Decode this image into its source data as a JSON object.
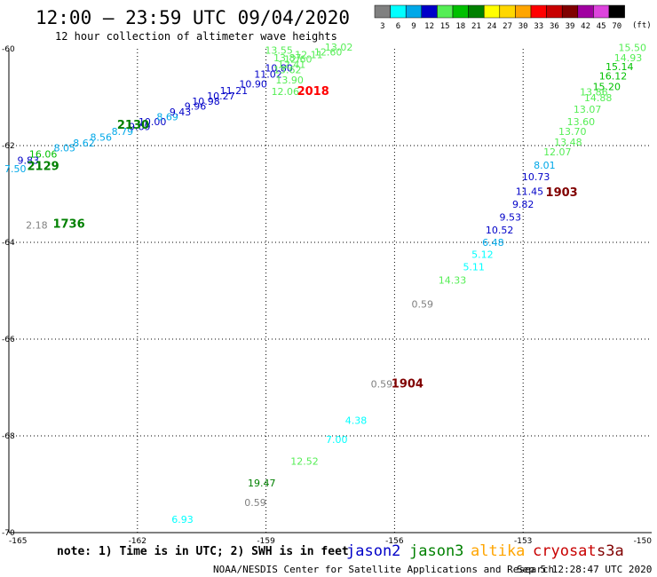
{
  "header": {
    "title": "12:00 – 23:59 UTC 09/04/2020",
    "subtitle": "12 hour collection of altimeter wave heights"
  },
  "legend": {
    "unit": "(ft)",
    "bins": [
      {
        "label": "3",
        "color": "#808080"
      },
      {
        "label": "6",
        "color": "#00ffff"
      },
      {
        "label": "9",
        "color": "#00a8e8"
      },
      {
        "label": "12",
        "color": "#0000c8"
      },
      {
        "label": "15",
        "color": "#55ee55"
      },
      {
        "label": "18",
        "color": "#00c000"
      },
      {
        "label": "21",
        "color": "#008000"
      },
      {
        "label": "24",
        "color": "#ffff00"
      },
      {
        "label": "27",
        "color": "#ffd700"
      },
      {
        "label": "30",
        "color": "#ffa500"
      },
      {
        "label": "33",
        "color": "#ff0000"
      },
      {
        "label": "36",
        "color": "#c80000"
      },
      {
        "label": "39",
        "color": "#800000"
      },
      {
        "label": "42",
        "color": "#a000a0"
      },
      {
        "label": "45",
        "color": "#dd44dd"
      },
      {
        "label": "70",
        "color": "#000000"
      }
    ]
  },
  "map": {
    "lon_range": [
      -165,
      -150
    ],
    "lat_range": [
      -70,
      -60
    ],
    "x_ticks": [
      "-165",
      "-162",
      "-159",
      "-156",
      "-153",
      "-150"
    ],
    "y_ticks": [
      "-60",
      "-62",
      "-64",
      "-66",
      "-68",
      "-70"
    ],
    "grid": "dotted",
    "time_labels": [
      {
        "text": "2018",
        "color": "#ff0000",
        "lon": -157.9,
        "lat": -60.95
      },
      {
        "text": "2130",
        "color": "#008000",
        "lon": -162.1,
        "lat": -61.65
      },
      {
        "text": "2129",
        "color": "#008000",
        "lon": -164.2,
        "lat": -62.5
      },
      {
        "text": "1736",
        "color": "#008000",
        "lon": -163.6,
        "lat": -63.7
      },
      {
        "text": "1903",
        "color": "#800000",
        "lon": -152.1,
        "lat": -63.05
      },
      {
        "text": "1904",
        "color": "#800000",
        "lon": -155.7,
        "lat": -67.0
      }
    ],
    "observations": [
      {
        "v": "7.50",
        "c": "#00a8e8",
        "lon": -164.85,
        "lat": -62.55
      },
      {
        "v": "9.83",
        "c": "#0000c8",
        "lon": -164.55,
        "lat": -62.38
      },
      {
        "v": "16.06",
        "c": "#00c000",
        "lon": -164.2,
        "lat": -62.25
      },
      {
        "v": "8.05",
        "c": "#00a8e8",
        "lon": -163.7,
        "lat": -62.12
      },
      {
        "v": "8.62",
        "c": "#00a8e8",
        "lon": -163.25,
        "lat": -62.02
      },
      {
        "v": "8.56",
        "c": "#00a8e8",
        "lon": -162.85,
        "lat": -61.9
      },
      {
        "v": "8.79",
        "c": "#00a8e8",
        "lon": -162.35,
        "lat": -61.78
      },
      {
        "v": "9.69",
        "c": "#0000c8",
        "lon": -161.95,
        "lat": -61.68
      },
      {
        "v": "10.00",
        "c": "#0000c8",
        "lon": -161.65,
        "lat": -61.58
      },
      {
        "v": "8.69",
        "c": "#00a8e8",
        "lon": -161.3,
        "lat": -61.48
      },
      {
        "v": "9.43",
        "c": "#0000c8",
        "lon": -161.0,
        "lat": -61.38
      },
      {
        "v": "9.96",
        "c": "#0000c8",
        "lon": -160.65,
        "lat": -61.26
      },
      {
        "v": "10.98",
        "c": "#0000c8",
        "lon": -160.4,
        "lat": -61.16
      },
      {
        "v": "10.27",
        "c": "#0000c8",
        "lon": -160.05,
        "lat": -61.05
      },
      {
        "v": "11.21",
        "c": "#0000c8",
        "lon": -159.75,
        "lat": -60.94
      },
      {
        "v": "10.90",
        "c": "#0000c8",
        "lon": -159.3,
        "lat": -60.8
      },
      {
        "v": "11.02",
        "c": "#0000c8",
        "lon": -158.95,
        "lat": -60.6
      },
      {
        "v": "10.80",
        "c": "#0000c8",
        "lon": -158.7,
        "lat": -60.47
      },
      {
        "v": "13.55",
        "c": "#55ee55",
        "lon": -158.7,
        "lat": -60.1
      },
      {
        "v": "13.87",
        "c": "#55ee55",
        "lon": -158.5,
        "lat": -60.26
      },
      {
        "v": "12.60",
        "c": "#55ee55",
        "lon": -158.25,
        "lat": -60.28
      },
      {
        "v": "13.62",
        "c": "#55ee55",
        "lon": -158.5,
        "lat": -60.5
      },
      {
        "v": "12.41",
        "c": "#55ee55",
        "lon": -158.4,
        "lat": -60.39
      },
      {
        "v": "12.11",
        "c": "#55ee55",
        "lon": -158.0,
        "lat": -60.19
      },
      {
        "v": "13.02",
        "c": "#55ee55",
        "lon": -157.3,
        "lat": -60.04
      },
      {
        "v": "12.60",
        "c": "#55ee55",
        "lon": -157.55,
        "lat": -60.14
      },
      {
        "v": "13.90",
        "c": "#55ee55",
        "lon": -158.45,
        "lat": -60.72
      },
      {
        "v": "12.06",
        "c": "#55ee55",
        "lon": -158.55,
        "lat": -60.95
      },
      {
        "v": "15.50",
        "c": "#55ee55",
        "lon": -150.45,
        "lat": -60.05
      },
      {
        "v": "14.93",
        "c": "#55ee55",
        "lon": -150.55,
        "lat": -60.26
      },
      {
        "v": "15.14",
        "c": "#00c000",
        "lon": -150.75,
        "lat": -60.44
      },
      {
        "v": "16.12",
        "c": "#00c000",
        "lon": -150.9,
        "lat": -60.63
      },
      {
        "v": "15.20",
        "c": "#00c000",
        "lon": -151.05,
        "lat": -60.85
      },
      {
        "v": "14.88",
        "c": "#55ee55",
        "lon": -151.25,
        "lat": -61.08
      },
      {
        "v": "13.86",
        "c": "#55ee55",
        "lon": -151.35,
        "lat": -60.96
      },
      {
        "v": "13.07",
        "c": "#55ee55",
        "lon": -151.5,
        "lat": -61.32
      },
      {
        "v": "13.60",
        "c": "#55ee55",
        "lon": -151.65,
        "lat": -61.58
      },
      {
        "v": "13.70",
        "c": "#55ee55",
        "lon": -151.85,
        "lat": -61.78
      },
      {
        "v": "13.48",
        "c": "#55ee55",
        "lon": -151.95,
        "lat": -62.0
      },
      {
        "v": "12.07",
        "c": "#55ee55",
        "lon": -152.2,
        "lat": -62.2
      },
      {
        "v": "8.01",
        "c": "#00a8e8",
        "lon": -152.5,
        "lat": -62.48
      },
      {
        "v": "10.73",
        "c": "#0000c8",
        "lon": -152.7,
        "lat": -62.72
      },
      {
        "v": "11.45",
        "c": "#0000c8",
        "lon": -152.85,
        "lat": -63.02
      },
      {
        "v": "9.82",
        "c": "#0000c8",
        "lon": -153.0,
        "lat": -63.28
      },
      {
        "v": "9.53",
        "c": "#0000c8",
        "lon": -153.3,
        "lat": -63.55
      },
      {
        "v": "10.52",
        "c": "#0000c8",
        "lon": -153.55,
        "lat": -63.82
      },
      {
        "v": "6.48",
        "c": "#00a8e8",
        "lon": -153.7,
        "lat": -64.07
      },
      {
        "v": "5.12",
        "c": "#00ffff",
        "lon": -153.95,
        "lat": -64.32
      },
      {
        "v": "5.11",
        "c": "#00ffff",
        "lon": -154.15,
        "lat": -64.58
      },
      {
        "v": "14.33",
        "c": "#55ee55",
        "lon": -154.65,
        "lat": -64.85
      },
      {
        "v": "0.59",
        "c": "#808080",
        "lon": -155.35,
        "lat": -65.35
      },
      {
        "v": "2.18",
        "c": "#808080",
        "lon": -164.35,
        "lat": -63.72
      },
      {
        "v": "0.59",
        "c": "#808080",
        "lon": -156.3,
        "lat": -67.0
      },
      {
        "v": "4.38",
        "c": "#00ffff",
        "lon": -156.9,
        "lat": -67.75
      },
      {
        "v": "7.00",
        "c": "#00ffff",
        "lon": -157.35,
        "lat": -68.15
      },
      {
        "v": "12.52",
        "c": "#55ee55",
        "lon": -158.1,
        "lat": -68.6
      },
      {
        "v": "19.47",
        "c": "#008000",
        "lon": -159.1,
        "lat": -69.05
      },
      {
        "v": "0.59",
        "c": "#808080",
        "lon": -159.25,
        "lat": -69.45
      },
      {
        "v": "6.93",
        "c": "#00ffff",
        "lon": -160.95,
        "lat": -69.8
      }
    ]
  },
  "footer": {
    "note": "note:  1) Time is in UTC;  2) SWH is in feet",
    "satellites": [
      {
        "name": "jason2",
        "color": "#0000c8"
      },
      {
        "name": "jason3",
        "color": "#008000"
      },
      {
        "name": "altika",
        "color": "#ffa500"
      },
      {
        "name": "cryosat",
        "color": "#c80000"
      },
      {
        "name": "s3a",
        "color": "#800000"
      }
    ],
    "credit": "NOAA/NESDIS Center for Satellite Applications and Research",
    "timestamp": "Sep  5 12:28:47 UTC 2020"
  }
}
